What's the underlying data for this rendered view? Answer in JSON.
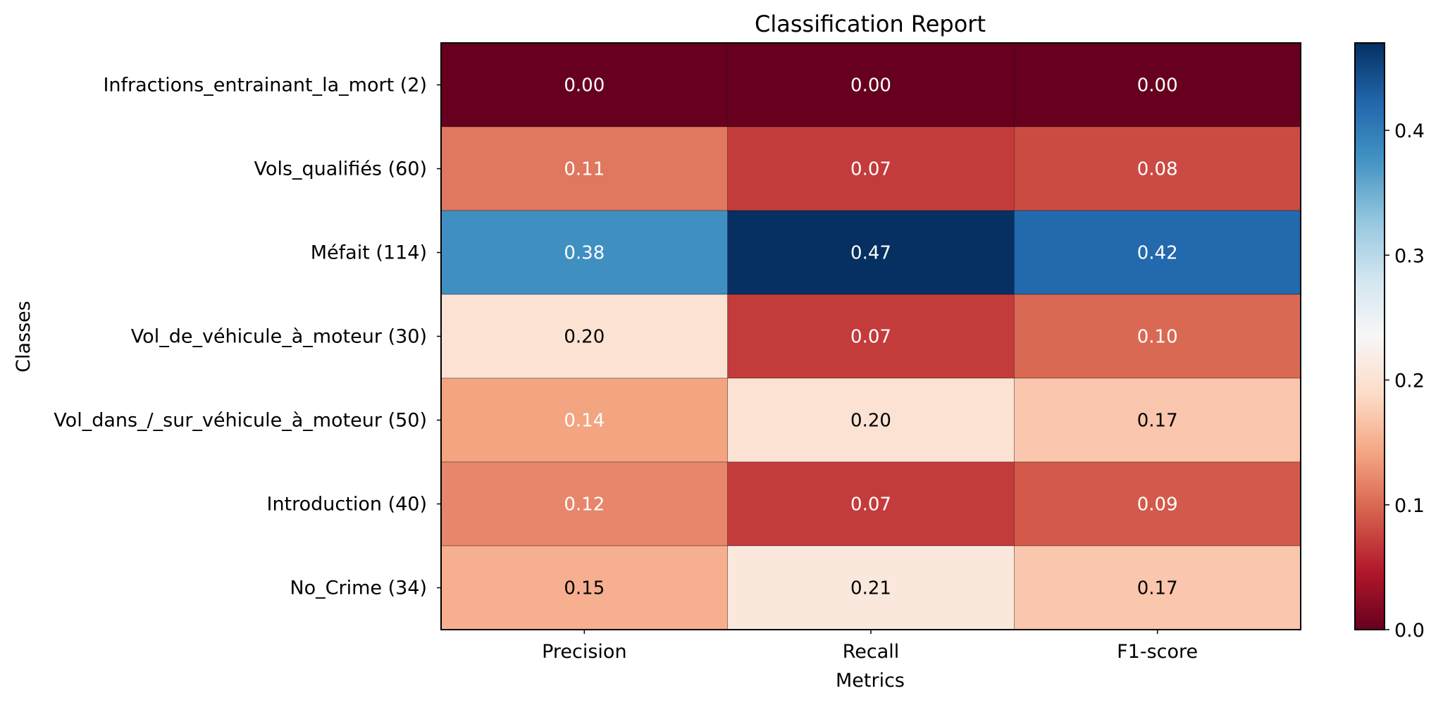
{
  "chart_data": {
    "type": "heatmap",
    "title": "Classification Report",
    "xlabel": "Metrics",
    "ylabel": "Classes",
    "x_categories": [
      "Precision",
      "Recall",
      "F1-score"
    ],
    "y_categories": [
      "Infractions_entrainant_la_mort (2)",
      "Vols_qualifiés (60)",
      "Méfait (114)",
      "Vol_de_véhicule_à_moteur (30)",
      "Vol_dans_/_sur_véhicule_à_moteur (50)",
      "Introduction (40)",
      "No_Crime (34)"
    ],
    "values": [
      [
        0.0,
        0.0,
        0.0
      ],
      [
        0.11,
        0.07,
        0.08
      ],
      [
        0.38,
        0.47,
        0.42
      ],
      [
        0.2,
        0.07,
        0.1
      ],
      [
        0.14,
        0.2,
        0.17
      ],
      [
        0.12,
        0.07,
        0.09
      ],
      [
        0.15,
        0.21,
        0.17
      ]
    ],
    "cell_labels": [
      [
        "0.00",
        "0.00",
        "0.00"
      ],
      [
        "0.11",
        "0.07",
        "0.08"
      ],
      [
        "0.38",
        "0.47",
        "0.42"
      ],
      [
        "0.20",
        "0.07",
        "0.10"
      ],
      [
        "0.14",
        "0.20",
        "0.17"
      ],
      [
        "0.12",
        "0.07",
        "0.09"
      ],
      [
        "0.15",
        "0.21",
        "0.17"
      ]
    ],
    "colormap": "RdBu",
    "vmin": 0.0,
    "vmax": 0.47,
    "colorbar": {
      "ticks": [
        0.0,
        0.1,
        0.2,
        0.3,
        0.4
      ],
      "tick_labels": [
        "0.0",
        "0.1",
        "0.2",
        "0.3",
        "0.4"
      ]
    }
  }
}
